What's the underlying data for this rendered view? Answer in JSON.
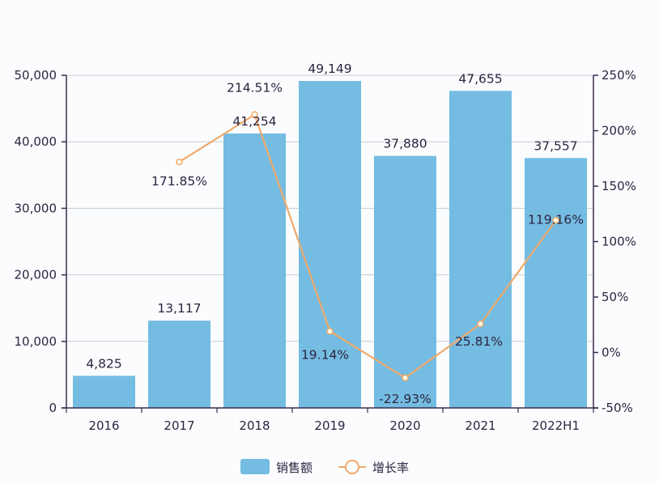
{
  "chart_data": {
    "type": "bar+line",
    "title": "",
    "categories": [
      "2016",
      "2017",
      "2018",
      "2019",
      "2020",
      "2021",
      "2022H1"
    ],
    "series": [
      {
        "name": "销售额",
        "type": "bar",
        "axis": "left",
        "color": "#74bce2",
        "values": [
          4825,
          13117,
          41254,
          49149,
          37880,
          47655,
          37557
        ],
        "labels": [
          "4,825",
          "13,117",
          "41,254",
          "49,149",
          "37,880",
          "47,655",
          "37,557"
        ]
      },
      {
        "name": "增长率",
        "type": "line",
        "axis": "right",
        "color": "#f0a96a",
        "values": [
          null,
          171.85,
          214.51,
          19.14,
          -22.93,
          25.81,
          119.16
        ],
        "labels": [
          "",
          "171.85%",
          "214.51%",
          "19.14%",
          "-22.93%",
          "25.81%",
          "119.16%"
        ]
      }
    ],
    "left_axis": {
      "ylim": [
        0,
        50000
      ],
      "ticks": [
        0,
        10000,
        20000,
        30000,
        40000,
        50000
      ],
      "tick_labels": [
        "0",
        "10,000",
        "20,000",
        "30,000",
        "40,000",
        "50,000"
      ]
    },
    "right_axis": {
      "ylim": [
        -50,
        250
      ],
      "ticks": [
        -50,
        0,
        50,
        100,
        150,
        200,
        250
      ],
      "tick_labels": [
        "-50%",
        "0%",
        "50%",
        "100%",
        "150%",
        "200%",
        "250%"
      ]
    },
    "xlabel": "",
    "ylabel": "",
    "grid": true,
    "legend_position": "bottom",
    "legend": [
      "销售额",
      "增长率"
    ]
  },
  "colors": {
    "bar": "#74bce2",
    "line": "#f0a96a",
    "axis": "#3a2b4f",
    "grid": "#c9ccd3",
    "text": "#2e2440"
  }
}
